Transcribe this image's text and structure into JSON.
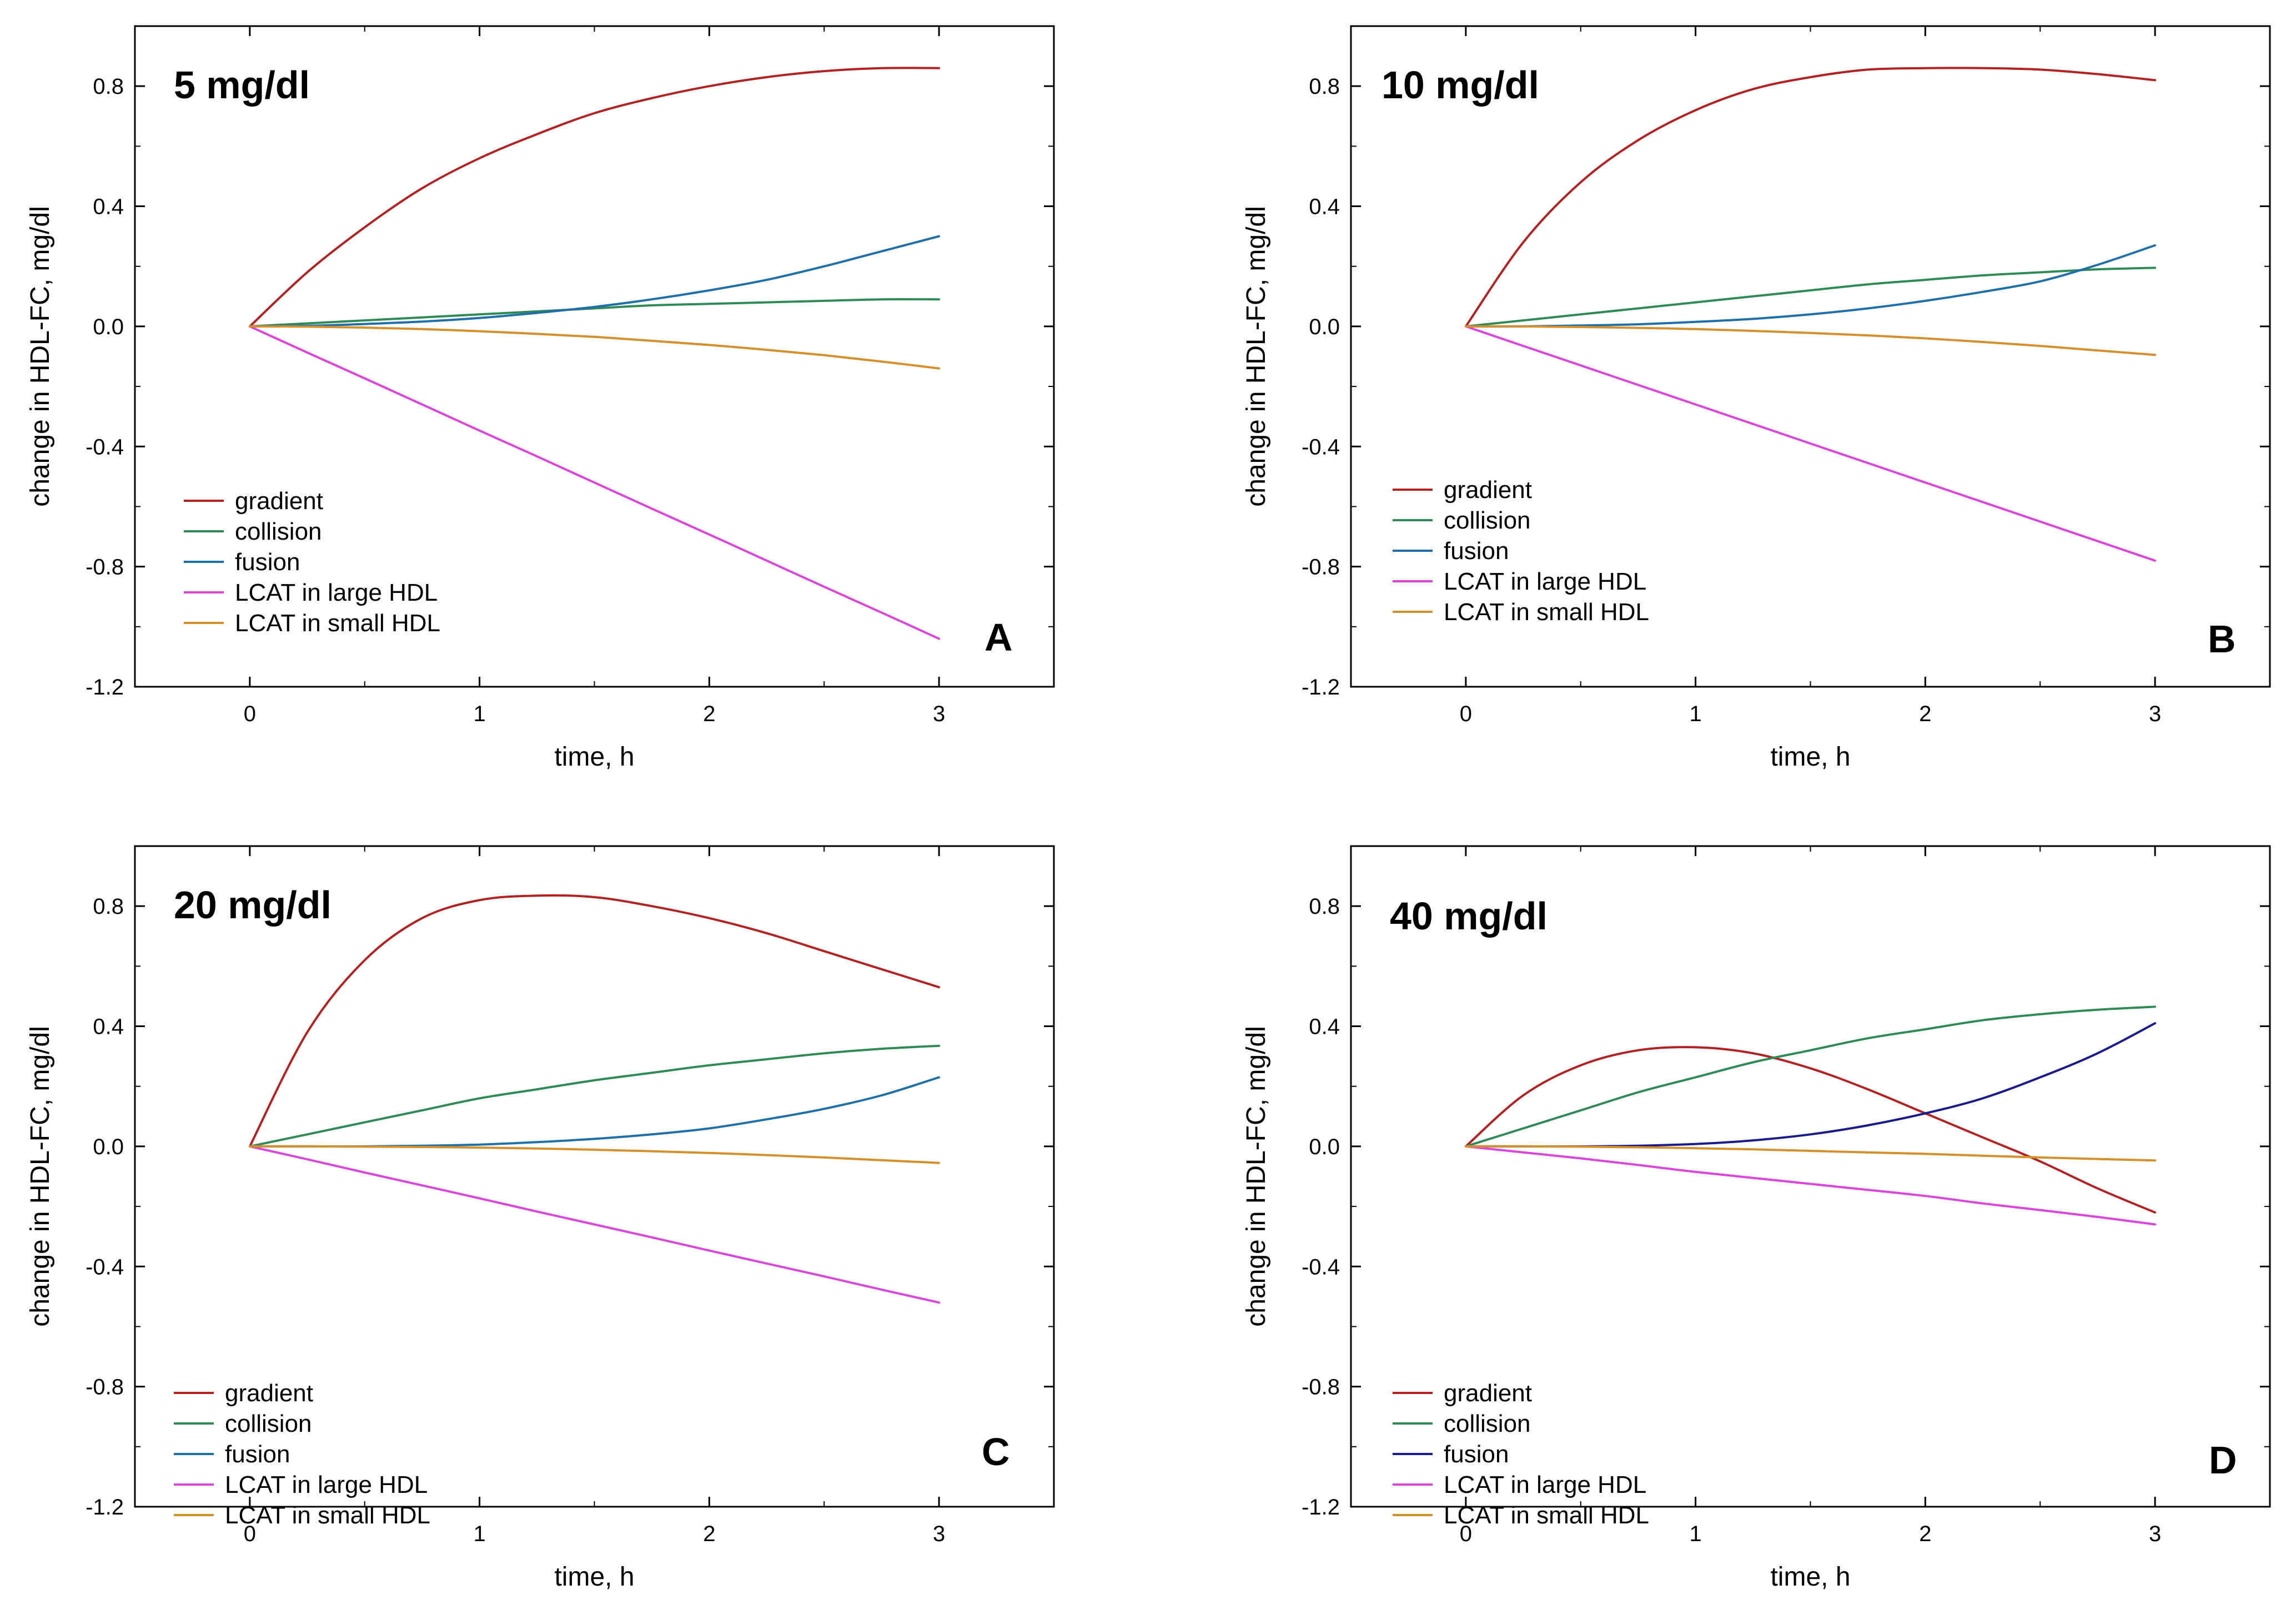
{
  "figure": {
    "xlabel": "time, h",
    "ylabel": "change in HDL-FC, mg/dl",
    "series_colors": {
      "gradient": "#b22222",
      "collision": "#2e8b57",
      "fusion_teal": "#1f6fa8",
      "fusion_navy": "#1a1a8c",
      "lcat_large": "#d946d9",
      "lcat_small": "#d4902c"
    }
  },
  "chart_data": [
    {
      "type": "line",
      "panel": "A",
      "title": "5 mg/dl",
      "xlabel": "time, h",
      "ylabel": "change in HDL-FC, mg/dl",
      "xlim": [
        -0.5,
        3.5
      ],
      "ylim": [
        -1.2,
        1.0
      ],
      "xticks": [
        0,
        1,
        2,
        3
      ],
      "xtick_labels": [
        "0",
        "1",
        "2",
        "3"
      ],
      "yticks": [
        0.8,
        0.4,
        0.0,
        -0.4,
        -0.8,
        -1.2
      ],
      "ytick_labels": [
        "0.8",
        "0.4",
        "0.0",
        "-0.4",
        "-0.8",
        "-1.2"
      ],
      "legend_position": "lower-left",
      "x": [
        0,
        0.25,
        0.5,
        0.75,
        1.0,
        1.25,
        1.5,
        1.75,
        2.0,
        2.25,
        2.5,
        2.75,
        3.0
      ],
      "series": [
        {
          "name": "gradient",
          "color": "#b22222",
          "values": [
            0.0,
            0.18,
            0.33,
            0.46,
            0.56,
            0.64,
            0.71,
            0.76,
            0.8,
            0.83,
            0.85,
            0.86,
            0.86
          ]
        },
        {
          "name": "collision",
          "color": "#2e8b57",
          "values": [
            0.0,
            0.01,
            0.02,
            0.03,
            0.04,
            0.05,
            0.06,
            0.07,
            0.075,
            0.08,
            0.085,
            0.09,
            0.09
          ]
        },
        {
          "name": "fusion",
          "color": "#1f6fa8",
          "values": [
            0.0,
            0.002,
            0.008,
            0.016,
            0.028,
            0.045,
            0.065,
            0.09,
            0.12,
            0.155,
            0.2,
            0.25,
            0.3
          ]
        },
        {
          "name": "LCAT in large HDL",
          "color": "#d946d9",
          "values": [
            0.0,
            -0.087,
            -0.173,
            -0.26,
            -0.347,
            -0.433,
            -0.52,
            -0.607,
            -0.693,
            -0.78,
            -0.867,
            -0.953,
            -1.04
          ]
        },
        {
          "name": "LCAT in small HDL",
          "color": "#d4902c",
          "values": [
            0.0,
            -0.001,
            -0.004,
            -0.009,
            -0.016,
            -0.025,
            -0.035,
            -0.048,
            -0.062,
            -0.078,
            -0.096,
            -0.117,
            -0.14
          ]
        }
      ]
    },
    {
      "type": "line",
      "panel": "B",
      "title": "10 mg/dl",
      "xlabel": "time, h",
      "ylabel": "change in HDL-FC, mg/dl",
      "xlim": [
        -0.5,
        3.5
      ],
      "ylim": [
        -1.2,
        1.0
      ],
      "xticks": [
        0,
        1,
        2,
        3
      ],
      "xtick_labels": [
        "0",
        "1",
        "2",
        "3"
      ],
      "yticks": [
        0.8,
        0.4,
        0.0,
        -0.4,
        -0.8,
        -1.2
      ],
      "ytick_labels": [
        "0.8",
        "0.4",
        "0.0",
        "-0.4",
        "-0.8",
        "-1.2"
      ],
      "legend_position": "lower-left",
      "x": [
        0,
        0.25,
        0.5,
        0.75,
        1.0,
        1.25,
        1.5,
        1.75,
        2.0,
        2.25,
        2.5,
        2.75,
        3.0
      ],
      "series": [
        {
          "name": "gradient",
          "color": "#b22222",
          "values": [
            0.0,
            0.28,
            0.48,
            0.62,
            0.72,
            0.79,
            0.83,
            0.855,
            0.86,
            0.86,
            0.855,
            0.84,
            0.82
          ]
        },
        {
          "name": "collision",
          "color": "#2e8b57",
          "values": [
            0.0,
            0.02,
            0.04,
            0.06,
            0.08,
            0.1,
            0.12,
            0.14,
            0.155,
            0.17,
            0.18,
            0.19,
            0.195
          ]
        },
        {
          "name": "fusion",
          "color": "#1f6fa8",
          "values": [
            0.0,
            0.0,
            0.003,
            0.007,
            0.015,
            0.025,
            0.04,
            0.06,
            0.085,
            0.115,
            0.15,
            0.205,
            0.27
          ]
        },
        {
          "name": "LCAT in large HDL",
          "color": "#d946d9",
          "values": [
            0.0,
            -0.065,
            -0.13,
            -0.195,
            -0.26,
            -0.325,
            -0.39,
            -0.455,
            -0.52,
            -0.585,
            -0.65,
            -0.715,
            -0.78
          ]
        },
        {
          "name": "LCAT in small HDL",
          "color": "#d4902c",
          "values": [
            0.0,
            0.0,
            -0.002,
            -0.005,
            -0.009,
            -0.015,
            -0.022,
            -0.03,
            -0.04,
            -0.052,
            -0.065,
            -0.08,
            -0.095
          ]
        }
      ]
    },
    {
      "type": "line",
      "panel": "C",
      "title": "20 mg/dl",
      "xlabel": "time, h",
      "ylabel": "change in HDL-FC, mg/dl",
      "xlim": [
        -0.5,
        3.5
      ],
      "ylim": [
        -1.2,
        1.0
      ],
      "xticks": [
        0,
        1,
        2,
        3
      ],
      "xtick_labels": [
        "0",
        "1",
        "2",
        "3"
      ],
      "yticks": [
        0.8,
        0.4,
        0.0,
        -0.4,
        -0.8,
        -1.2
      ],
      "ytick_labels": [
        "0.8",
        "0.4",
        "0.0",
        "-0.4",
        "-0.8",
        "-1.2"
      ],
      "legend_position": "lower-left",
      "x": [
        0,
        0.25,
        0.5,
        0.75,
        1.0,
        1.25,
        1.5,
        1.75,
        2.0,
        2.25,
        2.5,
        2.75,
        3.0
      ],
      "series": [
        {
          "name": "gradient",
          "color": "#b22222",
          "values": [
            0.0,
            0.38,
            0.62,
            0.76,
            0.82,
            0.835,
            0.83,
            0.8,
            0.76,
            0.71,
            0.65,
            0.59,
            0.53
          ]
        },
        {
          "name": "collision",
          "color": "#2e8b57",
          "values": [
            0.0,
            0.04,
            0.08,
            0.12,
            0.16,
            0.19,
            0.22,
            0.245,
            0.27,
            0.29,
            0.31,
            0.325,
            0.335
          ]
        },
        {
          "name": "fusion",
          "color": "#1f6fa8",
          "values": [
            0.0,
            0.0,
            0.0,
            0.002,
            0.006,
            0.014,
            0.025,
            0.04,
            0.06,
            0.09,
            0.125,
            0.17,
            0.23
          ]
        },
        {
          "name": "LCAT in large HDL",
          "color": "#d946d9",
          "values": [
            0.0,
            -0.043,
            -0.087,
            -0.13,
            -0.173,
            -0.217,
            -0.26,
            -0.303,
            -0.347,
            -0.39,
            -0.433,
            -0.477,
            -0.52
          ]
        },
        {
          "name": "LCAT in small HDL",
          "color": "#d4902c",
          "values": [
            0.0,
            0.0,
            -0.001,
            -0.002,
            -0.004,
            -0.007,
            -0.011,
            -0.016,
            -0.022,
            -0.029,
            -0.037,
            -0.046,
            -0.055
          ]
        }
      ]
    },
    {
      "type": "line",
      "panel": "D",
      "title": "40 mg/dl",
      "xlabel": "time, h",
      "ylabel": "change in HDL-FC, mg/dl",
      "xlim": [
        -0.5,
        3.5
      ],
      "ylim": [
        -1.2,
        1.0
      ],
      "xticks": [
        0,
        1,
        2,
        3
      ],
      "xtick_labels": [
        "0",
        "1",
        "2",
        "3"
      ],
      "yticks": [
        0.8,
        0.4,
        0.0,
        -0.4,
        -0.8,
        -1.2
      ],
      "ytick_labels": [
        "0.8",
        "0.4",
        "0.0",
        "-0.4",
        "-0.8",
        "-1.2"
      ],
      "legend_position": "lower-left",
      "x": [
        0,
        0.25,
        0.5,
        0.75,
        1.0,
        1.25,
        1.5,
        1.75,
        2.0,
        2.25,
        2.5,
        2.75,
        3.0
      ],
      "series": [
        {
          "name": "gradient",
          "color": "#b22222",
          "values": [
            0.0,
            0.17,
            0.27,
            0.32,
            0.33,
            0.31,
            0.26,
            0.19,
            0.11,
            0.03,
            -0.05,
            -0.14,
            -0.22
          ]
        },
        {
          "name": "collision",
          "color": "#2e8b57",
          "values": [
            0.0,
            0.06,
            0.12,
            0.18,
            0.23,
            0.28,
            0.32,
            0.36,
            0.39,
            0.42,
            0.44,
            0.455,
            0.465
          ]
        },
        {
          "name": "fusion",
          "color": "#1a1a8c",
          "values": [
            0.0,
            0.0,
            0.0,
            0.002,
            0.008,
            0.02,
            0.04,
            0.07,
            0.11,
            0.16,
            0.23,
            0.31,
            0.41
          ]
        },
        {
          "name": "LCAT in large HDL",
          "color": "#d946d9",
          "values": [
            0.0,
            -0.02,
            -0.04,
            -0.062,
            -0.085,
            -0.105,
            -0.125,
            -0.145,
            -0.165,
            -0.19,
            -0.212,
            -0.235,
            -0.26
          ]
        },
        {
          "name": "LCAT in small HDL",
          "color": "#d4902c",
          "values": [
            0.0,
            0.0,
            -0.001,
            -0.003,
            -0.006,
            -0.01,
            -0.015,
            -0.02,
            -0.025,
            -0.031,
            -0.037,
            -0.042,
            -0.047
          ]
        }
      ]
    }
  ]
}
